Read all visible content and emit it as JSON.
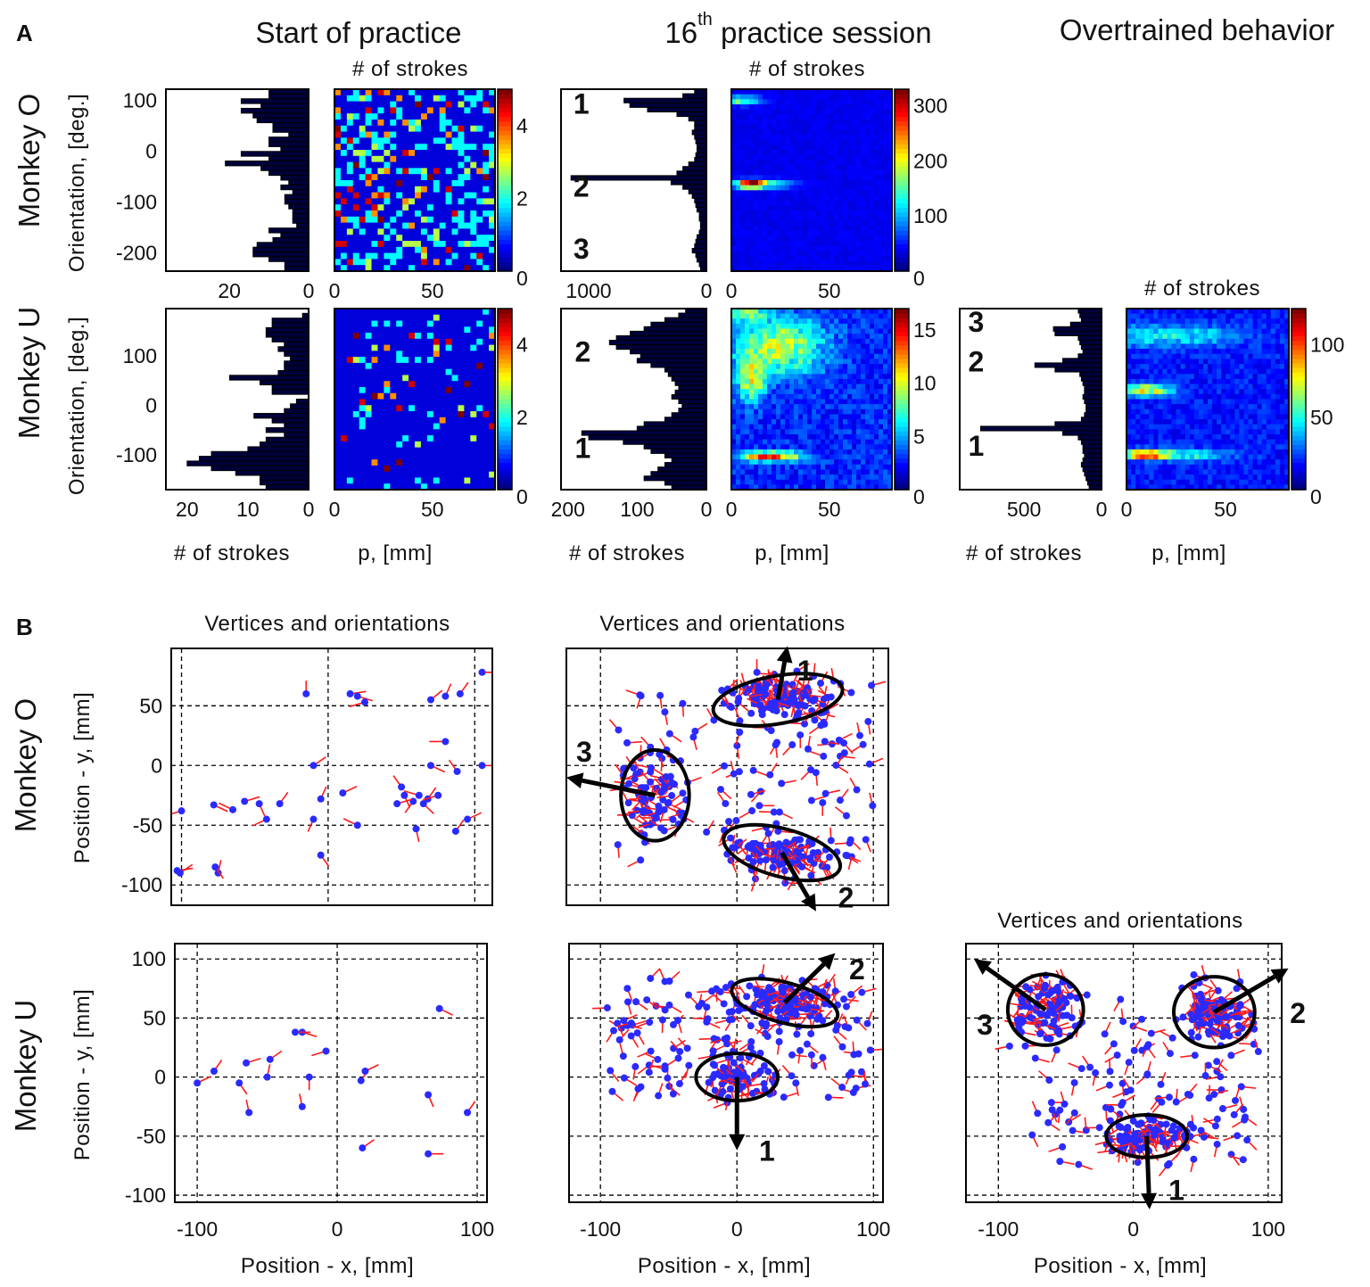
{
  "figure": {
    "panel_a_letter": "A",
    "panel_b_letter": "B",
    "col_titles": {
      "start": "Start of practice",
      "session_num": "16",
      "session_sup": "th",
      "session_rest": " practice session",
      "overtrained": "Overtrained behavior"
    },
    "row_labels": {
      "monkey_o": "Monkey O",
      "monkey_u": "Monkey U"
    },
    "orientation_label": "Orientation, [deg.]",
    "strokes_label": "# of strokes",
    "p_label": "p, [mm]",
    "vertices_title": "Vertices and orientations",
    "pos_y_label": "Position - y, [mm]",
    "pos_x_label": "Position - x, [mm]"
  },
  "colors": {
    "bar": "#00003a",
    "point": "#2a2aff",
    "orient_line": "#ff1a1a",
    "ellipse": "#000000"
  },
  "chart_data": [
    {
      "id": "A-O-start-hist",
      "type": "bar",
      "orientation": "horizontal",
      "xlabel": "# of strokes",
      "ylabel": "Orientation, [deg.]",
      "xlim": [
        36,
        0
      ],
      "ylim": [
        -236,
        122
      ],
      "xticks": [
        20,
        0
      ],
      "yticks": [
        100,
        0,
        -100,
        -200
      ],
      "values": [
        10,
        10,
        17,
        12,
        17,
        14,
        13,
        9,
        9,
        5,
        10,
        10,
        7,
        17,
        10,
        21,
        12,
        10,
        7,
        5,
        7,
        4,
        6,
        6,
        5,
        4,
        4,
        4,
        3,
        10,
        7,
        9,
        13,
        14,
        14,
        10,
        6,
        6
      ]
    },
    {
      "id": "A-O-start-heat",
      "type": "heatmap",
      "title": "# of strokes",
      "xlim": [
        0,
        82
      ],
      "ylim": [
        -236,
        122
      ],
      "xticks": [
        0,
        50
      ],
      "clim": [
        0,
        5
      ],
      "cticks": [
        0,
        2,
        4
      ],
      "grid": [
        30,
        26
      ],
      "mode": "sparse",
      "density": 0.38,
      "hotspots": []
    },
    {
      "id": "A-O-16-hist",
      "type": "bar",
      "orientation": "horizontal",
      "xlim": [
        1235,
        0
      ],
      "ylim": [
        -236,
        122
      ],
      "xticks": [
        1000,
        0
      ],
      "values": [
        100,
        200,
        700,
        650,
        500,
        250,
        150,
        100,
        100,
        120,
        100,
        90,
        80,
        80,
        90,
        100,
        150,
        200,
        250,
        1150,
        300,
        200,
        150,
        120,
        100,
        90,
        80,
        60,
        60,
        50,
        50,
        60,
        80,
        90,
        100,
        120,
        90,
        80,
        60,
        50
      ],
      "annotations": [
        {
          "text": "1",
          "x": 1130,
          "y": 95
        },
        {
          "text": "2",
          "x": 1130,
          "y": -68
        },
        {
          "text": "3",
          "x": 1130,
          "y": -190
        }
      ]
    },
    {
      "id": "A-O-16-heat",
      "type": "heatmap",
      "title": "# of strokes",
      "xlim": [
        0,
        82
      ],
      "ylim": [
        -236,
        122
      ],
      "xticks": [
        0,
        50
      ],
      "clim": [
        0,
        330
      ],
      "cticks": [
        0,
        100,
        200,
        300
      ],
      "grid": [
        36,
        36
      ],
      "mode": "dense",
      "noise": 0.07,
      "hotspots": [
        {
          "p": 4,
          "o": 100,
          "amp": 150,
          "sp": 7,
          "so": 6
        },
        {
          "p": 10,
          "o": -65,
          "amp": 330,
          "sp": 4,
          "so": 5
        },
        {
          "p": 15,
          "o": -65,
          "amp": 140,
          "sp": 10,
          "so": 6
        }
      ]
    },
    {
      "id": "A-U-start-hist",
      "type": "bar",
      "orientation": "horizontal",
      "xlabel": "# of strokes",
      "ylabel": "Orientation, [deg.]",
      "xlim": [
        23.5,
        0
      ],
      "ylim": [
        -170,
        195
      ],
      "xticks": [
        20,
        10,
        0
      ],
      "yticks": [
        100,
        0,
        -100
      ],
      "values": [
        0,
        1,
        6,
        6,
        7,
        7,
        6,
        4,
        5,
        4,
        3,
        4,
        4,
        5,
        13,
        8,
        6,
        6,
        0,
        2,
        3,
        4,
        9,
        6,
        4,
        7,
        4,
        7,
        8,
        10,
        16,
        18,
        20,
        16,
        12,
        8,
        8,
        7
      ]
    },
    {
      "id": "A-U-start-heat",
      "type": "heatmap",
      "xlabel": "p, [mm]",
      "xlim": [
        0,
        82
      ],
      "ylim": [
        -170,
        195
      ],
      "xticks": [
        0,
        50
      ],
      "clim": [
        0,
        5
      ],
      "cticks": [
        0,
        2,
        4
      ],
      "grid": [
        30,
        26
      ],
      "mode": "sparse",
      "density": 0.12,
      "hotspots": []
    },
    {
      "id": "A-U-16-hist",
      "type": "bar",
      "orientation": "horizontal",
      "xlabel": "# of strokes",
      "xlim": [
        210,
        0
      ],
      "ylim": [
        -170,
        195
      ],
      "xticks": [
        200,
        100,
        0
      ],
      "values": [
        30,
        40,
        60,
        80,
        90,
        110,
        130,
        140,
        130,
        110,
        95,
        100,
        80,
        60,
        55,
        50,
        45,
        40,
        45,
        50,
        40,
        35,
        40,
        50,
        60,
        90,
        100,
        180,
        170,
        120,
        90,
        80,
        60,
        50,
        60,
        70,
        80,
        90,
        60,
        50
      ],
      "annotations": [
        {
          "text": "2",
          "x": 190,
          "y": 110
        },
        {
          "text": "1",
          "x": 190,
          "y": -85
        }
      ]
    },
    {
      "id": "A-U-16-heat",
      "type": "heatmap",
      "xlabel": "p, [mm]",
      "xlim": [
        0,
        82
      ],
      "ylim": [
        -170,
        195
      ],
      "xticks": [
        0,
        50
      ],
      "clim": [
        0,
        17
      ],
      "cticks": [
        0,
        5,
        10,
        15
      ],
      "grid": [
        36,
        36
      ],
      "mode": "dense",
      "noise": 0.25,
      "hotspots": [
        {
          "p": 25,
          "o": 120,
          "amp": 8,
          "sp": 16,
          "so": 40
        },
        {
          "p": 10,
          "o": 50,
          "amp": 8,
          "sp": 5,
          "so": 30
        },
        {
          "p": 20,
          "o": -103,
          "amp": 14,
          "sp": 10,
          "so": 7
        },
        {
          "p": 8,
          "o": 185,
          "amp": 7,
          "sp": 6,
          "so": 10
        }
      ]
    },
    {
      "id": "A-U-over-hist",
      "type": "bar",
      "orientation": "horizontal",
      "xlabel": "# of strokes",
      "xlim": [
        915,
        0
      ],
      "ylim": [
        -170,
        195
      ],
      "xticks": [
        500,
        0
      ],
      "values": [
        150,
        140,
        130,
        200,
        310,
        300,
        150,
        140,
        130,
        120,
        150,
        250,
        430,
        300,
        140,
        130,
        120,
        110,
        110,
        120,
        110,
        100,
        100,
        110,
        130,
        300,
        780,
        250,
        150,
        130,
        120,
        120,
        110,
        120,
        130,
        120,
        110,
        100,
        90,
        80
      ],
      "annotations": [
        {
          "text": "3",
          "x": 860,
          "y": 170
        },
        {
          "text": "2",
          "x": 860,
          "y": 90
        },
        {
          "text": "1",
          "x": 860,
          "y": -80
        }
      ]
    },
    {
      "id": "A-U-over-heat",
      "type": "heatmap",
      "title": "# of strokes",
      "xlabel": "p, [mm]",
      "xlim": [
        0,
        82
      ],
      "ylim": [
        -170,
        195
      ],
      "xticks": [
        0,
        50
      ],
      "clim": [
        0,
        125
      ],
      "cticks": [
        0,
        50,
        100
      ],
      "grid": [
        36,
        36
      ],
      "mode": "dense",
      "noise": 0.2,
      "hotspots": [
        {
          "p": 10,
          "o": 30,
          "amp": 70,
          "sp": 9,
          "so": 8
        },
        {
          "p": 10,
          "o": -100,
          "amp": 110,
          "sp": 7,
          "so": 6
        },
        {
          "p": 20,
          "o": 140,
          "amp": 35,
          "sp": 25,
          "so": 15
        },
        {
          "p": 30,
          "o": -100,
          "amp": 40,
          "sp": 15,
          "so": 8
        }
      ]
    },
    {
      "id": "B-O-start",
      "type": "scatter",
      "title": "Vertices and orientations",
      "ylabel": "Position - y, [mm]",
      "xlim": [
        -107,
        112
      ],
      "ylim": [
        -117,
        98
      ],
      "xticks": [],
      "yticks": [
        50,
        0,
        -50,
        -100
      ],
      "gridx": [
        -100,
        0,
        100
      ],
      "gridy": [
        50,
        0,
        -50,
        -100
      ],
      "points": [
        [
          -103,
          -88,
          10
        ],
        [
          -101,
          -90,
          40
        ],
        [
          -75,
          -90,
          80
        ],
        [
          -77,
          -85,
          300
        ],
        [
          -100,
          -38,
          200
        ],
        [
          -78,
          -33,
          330
        ],
        [
          -65,
          -37,
          150
        ],
        [
          -57,
          -30,
          20
        ],
        [
          -47,
          -32,
          290
        ],
        [
          -33,
          -32,
          60
        ],
        [
          -42,
          -45,
          210
        ],
        [
          -15,
          60,
          90
        ],
        [
          -10,
          0,
          40
        ],
        [
          -5,
          -28,
          70
        ],
        [
          -5,
          -75,
          300
        ],
        [
          -10,
          -45,
          250
        ],
        [
          10,
          -23,
          30
        ],
        [
          15,
          60,
          10
        ],
        [
          20,
          58,
          340
        ],
        [
          25,
          53,
          200
        ],
        [
          50,
          -18,
          120
        ],
        [
          52,
          -25,
          290
        ],
        [
          58,
          -30,
          240
        ],
        [
          47,
          -32,
          20
        ],
        [
          62,
          -25,
          160
        ],
        [
          65,
          -32,
          310
        ],
        [
          68,
          -28,
          60
        ],
        [
          75,
          -25,
          200
        ],
        [
          70,
          0,
          330
        ],
        [
          88,
          -5,
          120
        ],
        [
          105,
          0,
          0
        ],
        [
          60,
          -53,
          280
        ],
        [
          87,
          -55,
          60
        ],
        [
          95,
          -45,
          30
        ],
        [
          70,
          55,
          45
        ],
        [
          80,
          58,
          70
        ],
        [
          90,
          60,
          60
        ],
        [
          105,
          78,
          0
        ],
        [
          80,
          20,
          180
        ],
        [
          20,
          -50,
          150
        ]
      ],
      "clusters": []
    },
    {
      "id": "B-O-16",
      "type": "scatter",
      "title": "Vertices and orientations",
      "xlim": [
        -125,
        111
      ],
      "ylim": [
        -117,
        98
      ],
      "xticks": [],
      "gridx": [
        -100,
        0,
        100
      ],
      "gridy": [
        50,
        0,
        -50,
        -100
      ],
      "points": [],
      "background": {
        "count": 110,
        "xrange": [
          -90,
          100
        ],
        "yrange": [
          -80,
          70
        ]
      },
      "clusters": [
        {
          "label": "1",
          "x": 30,
          "y": 55,
          "rx": 48,
          "ry": 20,
          "rot": -10,
          "n": 110,
          "arrow_to": [
            37,
            100
          ],
          "label_at": [
            50,
            80
          ]
        },
        {
          "label": "3",
          "x": -60,
          "y": -25,
          "rx": 25,
          "ry": 38,
          "rot": 0,
          "n": 60,
          "arrow_to": [
            -125,
            -10
          ],
          "label_at": [
            -112,
            12
          ]
        },
        {
          "label": "2",
          "x": 33,
          "y": -73,
          "rx": 44,
          "ry": 20,
          "rot": 15,
          "n": 90,
          "arrow_to": [
            58,
            -122
          ],
          "label_at": [
            80,
            -110
          ]
        }
      ]
    },
    {
      "id": "B-U-start",
      "type": "scatter",
      "xlabel": "Position - x, [mm]",
      "ylabel": "Position - y, [mm]",
      "xlim": [
        -116,
        107
      ],
      "ylim": [
        -106,
        113
      ],
      "xticks": [
        -100,
        0,
        100
      ],
      "yticks": [
        100,
        50,
        0,
        -50,
        -100
      ],
      "gridx": [
        -100,
        0,
        100
      ],
      "gridy": [
        100,
        50,
        0,
        -50,
        -100
      ],
      "points": [
        [
          -100,
          -5,
          30
        ],
        [
          -88,
          5,
          60
        ],
        [
          -70,
          -5,
          300
        ],
        [
          -63,
          -30,
          100
        ],
        [
          -65,
          12,
          20
        ],
        [
          -48,
          15,
          40
        ],
        [
          -50,
          0,
          80
        ],
        [
          -25,
          -25,
          100
        ],
        [
          -25,
          38,
          340
        ],
        [
          -20,
          0,
          270
        ],
        [
          -8,
          22,
          200
        ],
        [
          17,
          -3,
          60
        ],
        [
          20,
          5,
          30
        ],
        [
          18,
          -60,
          40
        ],
        [
          65,
          -15,
          290
        ],
        [
          65,
          -65,
          0
        ],
        [
          73,
          58,
          330
        ],
        [
          93,
          -30,
          60
        ],
        [
          -30,
          38,
          0
        ]
      ],
      "clusters": []
    },
    {
      "id": "B-U-16",
      "type": "scatter",
      "xlabel": "Position - x, [mm]",
      "xlim": [
        -123,
        107
      ],
      "ylim": [
        -106,
        113
      ],
      "xticks": [
        -100,
        0,
        100
      ],
      "gridx": [
        -100,
        0,
        100
      ],
      "gridy": [
        100,
        50,
        0,
        -50,
        -100
      ],
      "points": [],
      "background": {
        "count": 150,
        "xrange": [
          -95,
          100
        ],
        "yrange": [
          -20,
          85
        ]
      },
      "clusters": [
        {
          "label": "2",
          "x": 35,
          "y": 63,
          "rx": 40,
          "ry": 17,
          "rot": 15,
          "n": 90,
          "arrow_to": [
            72,
            105
          ],
          "label_at": [
            88,
            92
          ]
        },
        {
          "label": "1",
          "x": 0,
          "y": 0,
          "rx": 30,
          "ry": 20,
          "rot": 0,
          "n": 50,
          "arrow_to": [
            0,
            -62
          ],
          "label_at": [
            22,
            -62
          ]
        }
      ]
    },
    {
      "id": "B-U-over",
      "type": "scatter",
      "title": "Vertices and orientations",
      "xlabel": "Position - x, [mm]",
      "xlim": [
        -124,
        110
      ],
      "ylim": [
        -106,
        113
      ],
      "xticks": [
        -100,
        0,
        100
      ],
      "gridx": [
        -100,
        0,
        100
      ],
      "gridy": [
        100,
        50,
        0,
        -50,
        -100
      ],
      "points": [],
      "background": {
        "count": 130,
        "xrange": [
          -85,
          90
        ],
        "yrange": [
          -75,
          70
        ]
      },
      "clusters": [
        {
          "label": "3",
          "x": -65,
          "y": 57,
          "rx": 28,
          "ry": 30,
          "rot": 0,
          "n": 80,
          "arrow_to": [
            -118,
            100
          ],
          "label_at": [
            -110,
            45
          ]
        },
        {
          "label": "2",
          "x": 60,
          "y": 55,
          "rx": 30,
          "ry": 30,
          "rot": 0,
          "n": 90,
          "arrow_to": [
            115,
            92
          ],
          "label_at": [
            122,
            55
          ]
        },
        {
          "label": "1",
          "x": 10,
          "y": -50,
          "rx": 30,
          "ry": 18,
          "rot": 0,
          "n": 70,
          "arrow_to": [
            12,
            -112
          ],
          "label_at": [
            32,
            -95
          ]
        }
      ]
    }
  ]
}
